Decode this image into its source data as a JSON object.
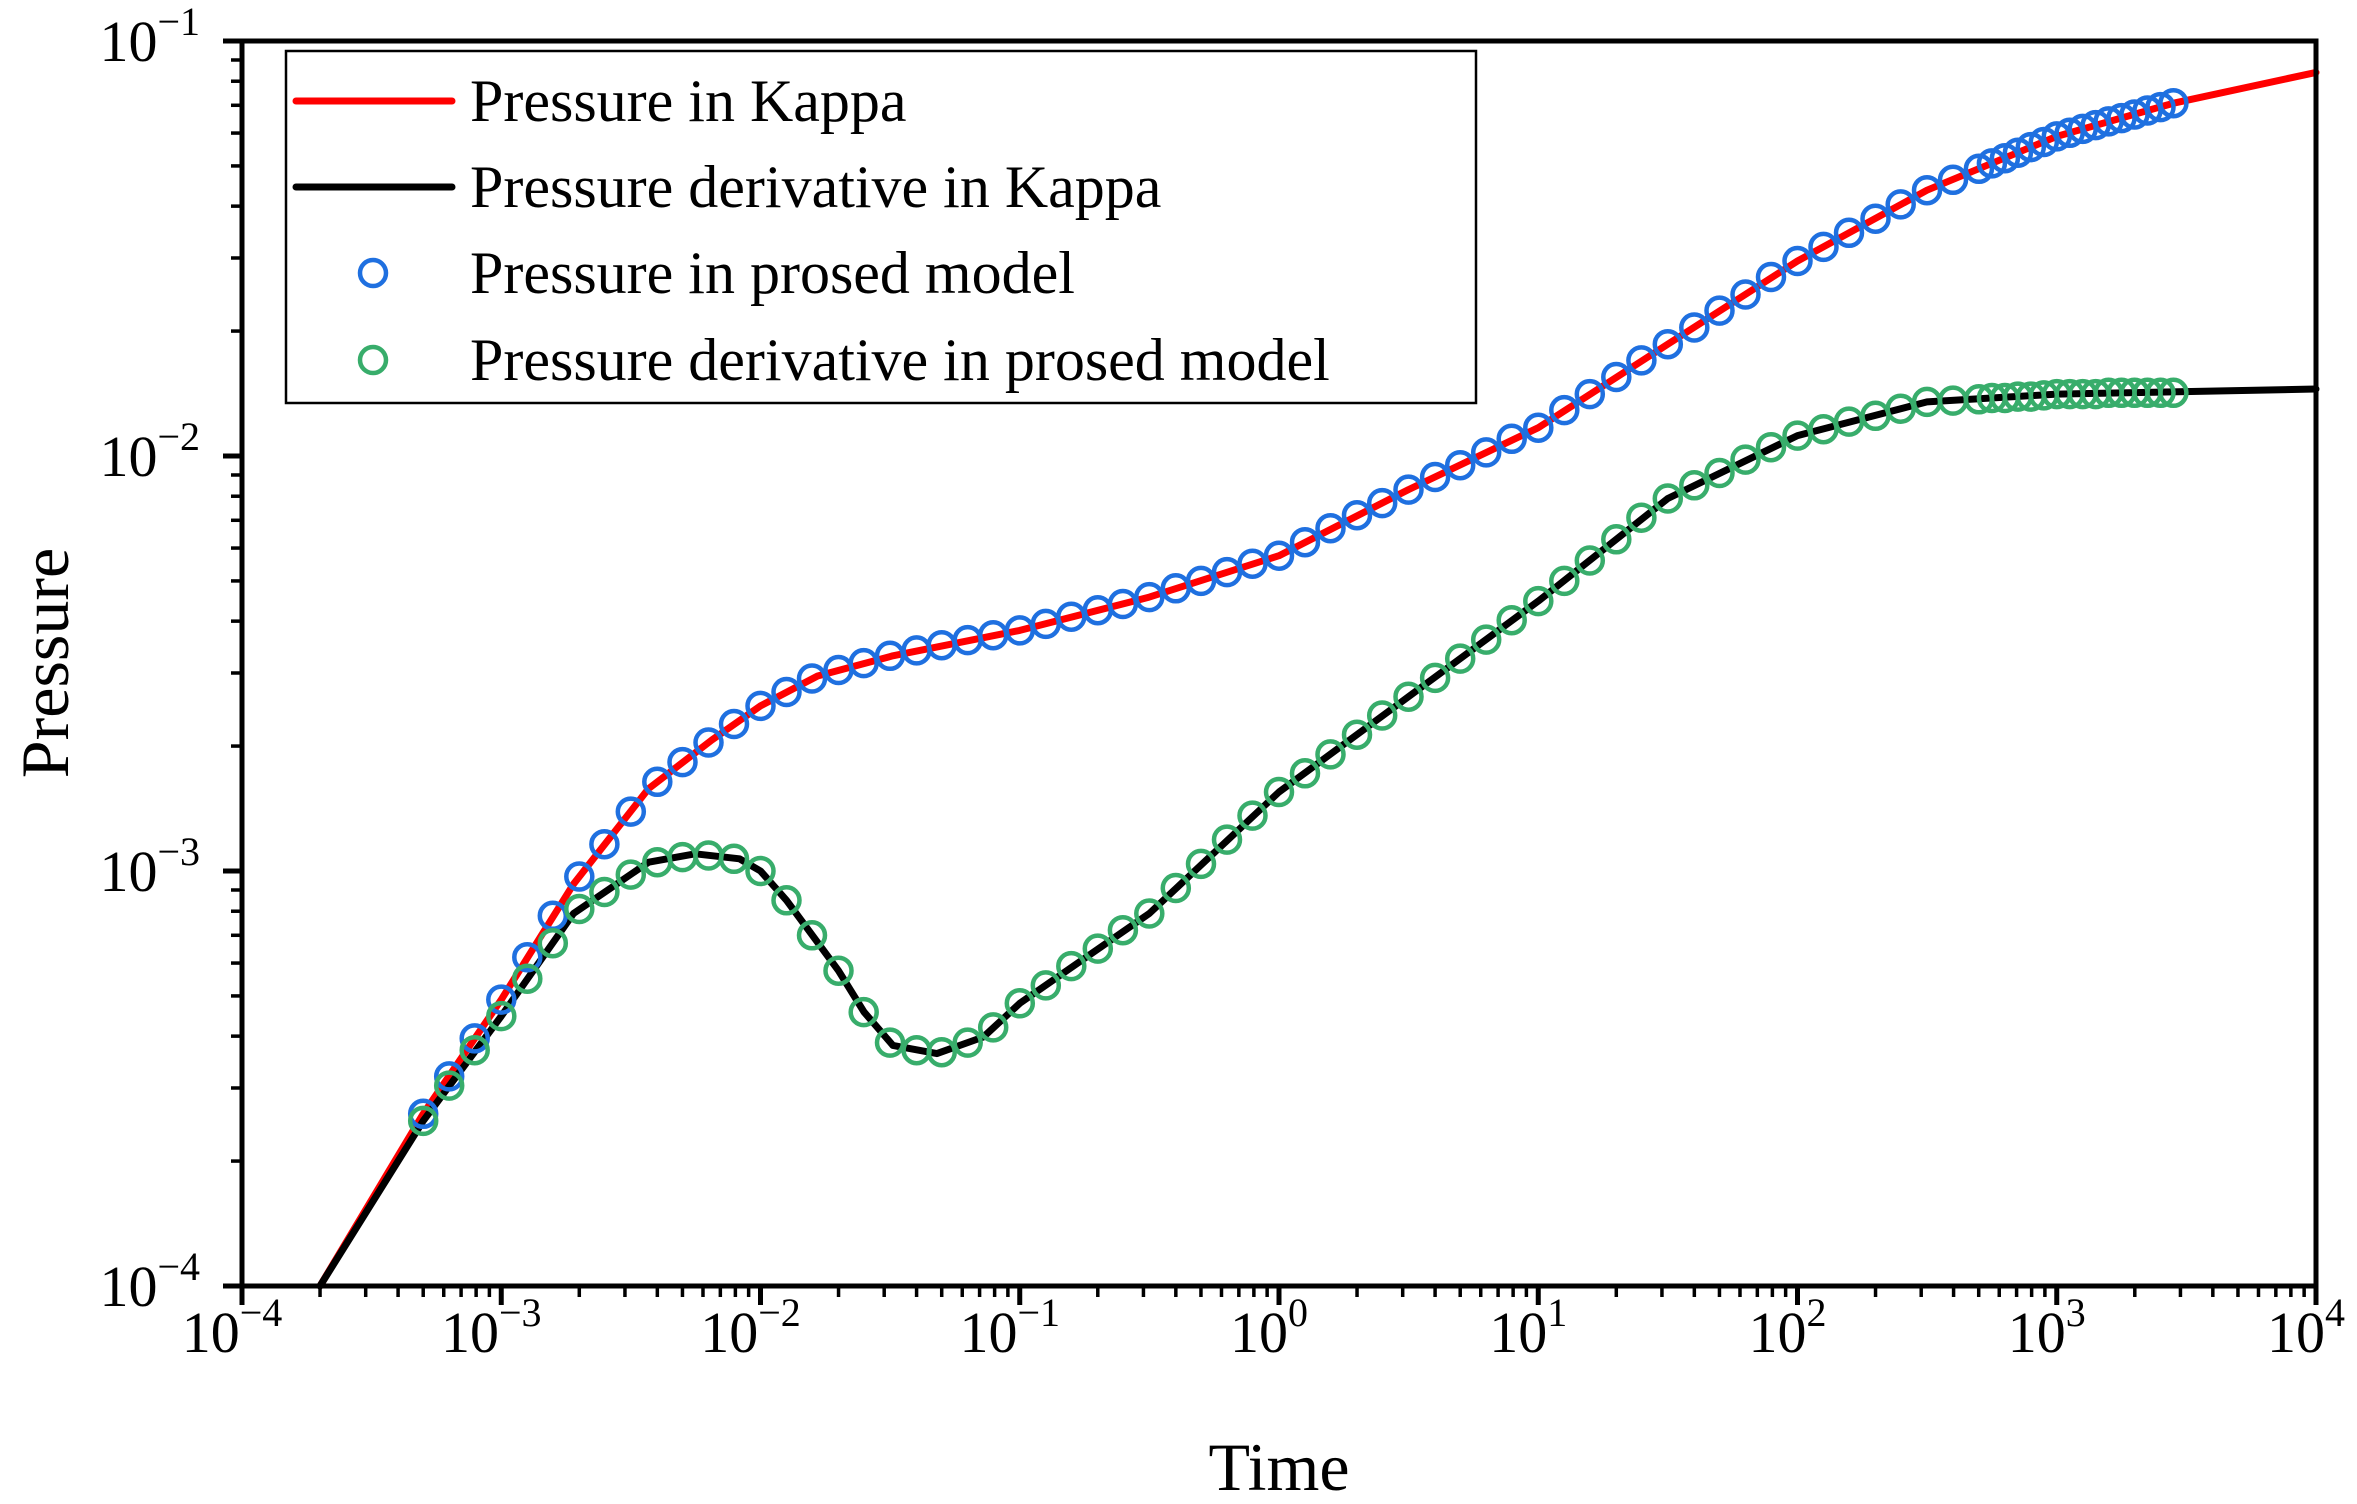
{
  "chart_data": {
    "type": "line",
    "xlabel": "Time",
    "ylabel": "Pressure",
    "xscale": "log",
    "yscale": "log",
    "xlim": [
      0.0001,
      10000
    ],
    "ylim": [
      0.0001,
      0.1
    ],
    "grid": false,
    "legend_position": "top-left",
    "x_ticks": [
      {
        "base": "10",
        "exp": "−4",
        "value": 0.0001
      },
      {
        "base": "10",
        "exp": "−3",
        "value": 0.001
      },
      {
        "base": "10",
        "exp": "−2",
        "value": 0.01
      },
      {
        "base": "10",
        "exp": "−1",
        "value": 0.1
      },
      {
        "base": "10",
        "exp": "0",
        "value": 1
      },
      {
        "base": "10",
        "exp": "1",
        "value": 10
      },
      {
        "base": "10",
        "exp": "2",
        "value": 100
      },
      {
        "base": "10",
        "exp": "3",
        "value": 1000
      },
      {
        "base": "10",
        "exp": "4",
        "value": 10000
      }
    ],
    "y_ticks": [
      {
        "base": "10",
        "exp": "−4",
        "value": 0.0001
      },
      {
        "base": "10",
        "exp": "−3",
        "value": 0.001
      },
      {
        "base": "10",
        "exp": "−2",
        "value": 0.01
      },
      {
        "base": "10",
        "exp": "−1",
        "value": 0.1
      }
    ],
    "series": [
      {
        "name": "Pressure in Kappa",
        "kind": "line",
        "color": "#ff0000",
        "x": [
          0.0002,
          0.0005,
          0.001,
          0.0019,
          0.0037,
          0.0065,
          0.01,
          0.0166,
          0.0324,
          0.1,
          0.316,
          1,
          3.16,
          10,
          31.6,
          100,
          316,
          1000,
          2820,
          10000
        ],
        "y": [
          0.0001,
          0.00026,
          0.00049,
          0.00093,
          0.00158,
          0.00207,
          0.0025,
          0.00295,
          0.0033,
          0.0038,
          0.00457,
          0.00575,
          0.0083,
          0.0117,
          0.0186,
          0.0295,
          0.0437,
          0.0589,
          0.0708,
          0.084
        ]
      },
      {
        "name": "Pressure derivative in Kappa",
        "kind": "line",
        "color": "#000000",
        "x": [
          0.0002,
          0.0005,
          0.001,
          0.0019,
          0.0037,
          0.0056,
          0.0083,
          0.01,
          0.0126,
          0.02,
          0.0251,
          0.0324,
          0.0479,
          0.0724,
          0.1,
          0.316,
          1,
          3.16,
          10,
          31.6,
          100,
          316,
          1000,
          10000
        ],
        "y": [
          0.0001,
          0.00025,
          0.000447,
          0.00079,
          0.00105,
          0.0011,
          0.00107,
          0.001,
          0.00085,
          0.000575,
          0.000457,
          0.00038,
          0.000363,
          0.000398,
          0.00048,
          0.00079,
          0.00155,
          0.00263,
          0.00447,
          0.0079,
          0.0112,
          0.0135,
          0.0141,
          0.0145
        ]
      },
      {
        "name": "Pressure in prosed model",
        "kind": "marker",
        "color": "#1f70e0",
        "x": [
          0.0005,
          0.00063,
          0.00079,
          0.001,
          0.00126,
          0.00158,
          0.002,
          0.0025,
          0.00316,
          0.004,
          0.005,
          0.0063,
          0.0079,
          0.01,
          0.0126,
          0.0158,
          0.02,
          0.025,
          0.0316,
          0.04,
          0.05,
          0.063,
          0.079,
          0.1,
          0.126,
          0.158,
          0.2,
          0.25,
          0.316,
          0.4,
          0.5,
          0.63,
          0.79,
          1,
          1.26,
          1.58,
          2,
          2.5,
          3.16,
          4,
          5,
          6.3,
          7.9,
          10,
          12.6,
          15.8,
          20,
          25,
          31.6,
          40,
          50,
          63,
          79,
          100,
          126,
          158,
          200,
          250,
          316,
          398,
          501,
          562,
          631,
          708,
          794,
          891,
          1000,
          1122,
          1259,
          1413,
          1585,
          1778,
          1995,
          2239,
          2512,
          2818
        ],
        "y": [
          0.00026,
          0.00032,
          0.000395,
          0.00049,
          0.00062,
          0.00078,
          0.00097,
          0.00116,
          0.00139,
          0.00164,
          0.00183,
          0.00204,
          0.00226,
          0.0025,
          0.0027,
          0.00291,
          0.00305,
          0.00317,
          0.0033,
          0.0034,
          0.0035,
          0.0036,
          0.0037,
          0.0038,
          0.00394,
          0.0041,
          0.00425,
          0.0044,
          0.00457,
          0.0048,
          0.005,
          0.00525,
          0.0055,
          0.00575,
          0.0062,
          0.0067,
          0.0072,
          0.0077,
          0.0083,
          0.0089,
          0.0095,
          0.0102,
          0.011,
          0.0117,
          0.0129,
          0.0141,
          0.0155,
          0.017,
          0.0186,
          0.0204,
          0.0224,
          0.0245,
          0.027,
          0.0295,
          0.0319,
          0.0345,
          0.0373,
          0.0404,
          0.0437,
          0.0463,
          0.0492,
          0.0507,
          0.0522,
          0.0538,
          0.0555,
          0.0571,
          0.0589,
          0.0601,
          0.0614,
          0.0627,
          0.064,
          0.0652,
          0.0665,
          0.068,
          0.0693,
          0.0708
        ]
      },
      {
        "name": "Pressure derivative in prosed model",
        "kind": "marker",
        "color": "#38ad6b",
        "x": [
          0.0005,
          0.00063,
          0.00079,
          0.001,
          0.00126,
          0.00158,
          0.002,
          0.0025,
          0.00316,
          0.004,
          0.005,
          0.0063,
          0.0079,
          0.01,
          0.0126,
          0.0158,
          0.02,
          0.025,
          0.0316,
          0.04,
          0.05,
          0.063,
          0.079,
          0.1,
          0.126,
          0.158,
          0.2,
          0.25,
          0.316,
          0.4,
          0.5,
          0.63,
          0.79,
          1,
          1.26,
          1.58,
          2,
          2.5,
          3.16,
          4,
          5,
          6.3,
          7.9,
          10,
          12.6,
          15.8,
          20,
          25,
          31.6,
          40,
          50,
          63,
          79,
          100,
          126,
          158,
          200,
          250,
          316,
          398,
          501,
          562,
          631,
          708,
          794,
          891,
          1000,
          1122,
          1259,
          1413,
          1585,
          1778,
          1995,
          2239,
          2512,
          2818
        ],
        "y": [
          0.00025,
          0.000304,
          0.00037,
          0.000447,
          0.00055,
          0.00067,
          0.00081,
          0.00089,
          0.00098,
          0.00105,
          0.00108,
          0.00109,
          0.00107,
          0.001,
          0.00085,
          0.0007,
          0.000575,
          0.000457,
          0.000386,
          0.00037,
          0.000366,
          0.000386,
          0.00042,
          0.00048,
          0.00053,
          0.00059,
          0.00065,
          0.00072,
          0.00079,
          0.00091,
          0.00104,
          0.00119,
          0.00136,
          0.00155,
          0.00172,
          0.00191,
          0.00213,
          0.00237,
          0.00263,
          0.00292,
          0.00325,
          0.00361,
          0.00402,
          0.00447,
          0.005,
          0.0056,
          0.0063,
          0.0071,
          0.0079,
          0.0085,
          0.0091,
          0.0098,
          0.0105,
          0.0112,
          0.0116,
          0.0121,
          0.0125,
          0.013,
          0.0135,
          0.0136,
          0.0137,
          0.0138,
          0.0138,
          0.0139,
          0.0139,
          0.014,
          0.0141,
          0.0141,
          0.0141,
          0.0141,
          0.0142,
          0.0142,
          0.0142,
          0.0142,
          0.0142,
          0.0142
        ]
      }
    ]
  }
}
